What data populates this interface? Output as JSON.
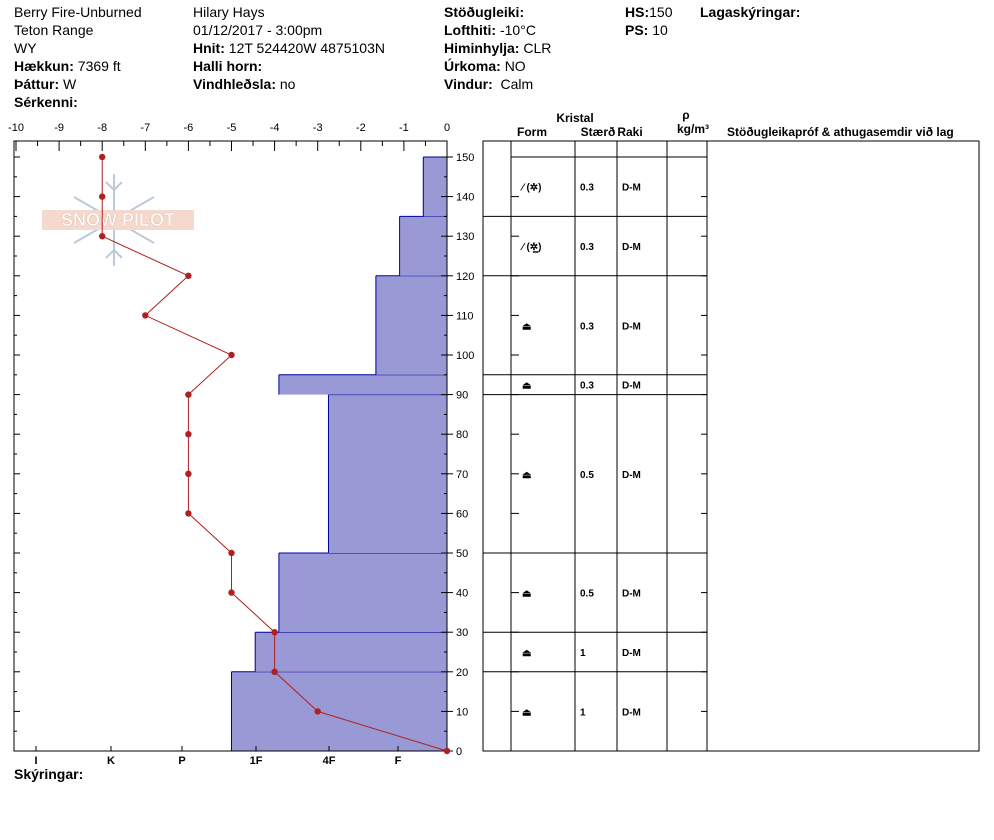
{
  "header": {
    "col1": {
      "location": "Berry Fire-Unburned",
      "range": "Teton Range",
      "state": "WY",
      "elevation_label": "Hækkun:",
      "elevation_value": "7369 ft",
      "aspect_label": "Þáttur:",
      "aspect_value": "W",
      "features_label": "Sérkenni:"
    },
    "col2": {
      "observer": "Hilary Hays",
      "datetime": "01/12/2017 - 3:00pm",
      "coords_label": "Hnit:",
      "coords_value": "12T 524420W 4875103N",
      "slope_label": "Halli horn:",
      "wind_loading_label": "Vindhleðsla:",
      "wind_loading_value": "no"
    },
    "col3": {
      "stability_label": "Stöðugleiki:",
      "airtemp_label": "Lofthiti:",
      "airtemp_value": "-10°C",
      "sky_label": "Himinhylja:",
      "sky_value": "CLR",
      "precip_label": "Úrkoma:",
      "precip_value": "NO",
      "wind_label": "Vindur:",
      "wind_value": "Calm"
    },
    "col4": {
      "hs_label": "HS:",
      "hs_value": "150",
      "ps_label": "PS:",
      "ps_value": "10"
    },
    "layer_notes_label": "Lagaskýringar:"
  },
  "footer": {
    "notes_label": "Skýringar:"
  },
  "logo_text": "SNOW PILOT",
  "table": {
    "kristal_label": "Kristal",
    "form_label": "Form",
    "size_label": "Stærð",
    "wetness_label": "Raki",
    "density_symbol": "ρ",
    "density_unit": "kg/m³",
    "comments_label": "Stöðugleikapróf & athugasemdir við lag"
  },
  "colors": {
    "hardness_fill": "#9999d6",
    "hardness_stroke": "#0000a0",
    "temp_line": "#b02020"
  },
  "chart_data": {
    "type": "snow-profile",
    "height_axis": {
      "min": 0,
      "max": 150,
      "ticks": [
        0,
        10,
        20,
        30,
        40,
        50,
        60,
        70,
        80,
        90,
        100,
        110,
        120,
        130,
        140,
        150
      ]
    },
    "temp_axis": {
      "min": -10,
      "max": 0,
      "tick_labels": [
        "-10",
        "-9",
        "-8",
        "-7",
        "-6",
        "-5",
        "-4",
        "-3",
        "-2",
        "-1",
        "0"
      ]
    },
    "hardness_axis_labels": [
      "I",
      "K",
      "P",
      "1F",
      "4F",
      "F"
    ],
    "hardness_layers": [
      {
        "bottom": 0,
        "top": 20,
        "temp_units": -5.0
      },
      {
        "bottom": 20,
        "top": 30,
        "temp_units": -4.45
      },
      {
        "bottom": 30,
        "top": 50,
        "temp_units": -3.9
      },
      {
        "bottom": 50,
        "top": 90,
        "temp_units": -2.75
      },
      {
        "bottom": 90,
        "top": 95,
        "temp_units": -3.9
      },
      {
        "bottom": 95,
        "top": 120,
        "temp_units": -1.65
      },
      {
        "bottom": 120,
        "top": 135,
        "temp_units": -1.1
      },
      {
        "bottom": 135,
        "top": 150,
        "temp_units": -0.55
      }
    ],
    "temperature_profile": [
      {
        "height": 0,
        "temp": 0
      },
      {
        "height": 10,
        "temp": -3
      },
      {
        "height": 20,
        "temp": -4
      },
      {
        "height": 30,
        "temp": -4
      },
      {
        "height": 40,
        "temp": -5
      },
      {
        "height": 50,
        "temp": -5
      },
      {
        "height": 60,
        "temp": -6
      },
      {
        "height": 70,
        "temp": -6
      },
      {
        "height": 80,
        "temp": -6
      },
      {
        "height": 90,
        "temp": -6
      },
      {
        "height": 100,
        "temp": -5
      },
      {
        "height": 110,
        "temp": -7
      },
      {
        "height": 120,
        "temp": -6
      },
      {
        "height": 130,
        "temp": -8
      },
      {
        "height": 140,
        "temp": -8
      },
      {
        "height": 150,
        "temp": -8
      }
    ],
    "layers": [
      {
        "top": 150,
        "bottom": 135,
        "form": "⁄ (✲)",
        "size": "0.3",
        "wetness": "D-M"
      },
      {
        "top": 135,
        "bottom": 120,
        "form": "⁄ (✲̲)",
        "size": "0.3",
        "wetness": "D-M"
      },
      {
        "top": 120,
        "bottom": 95,
        "form": "⏏",
        "size": "0.3",
        "wetness": "D-M"
      },
      {
        "top": 95,
        "bottom": 90,
        "form": "⏏",
        "size": "0.3",
        "wetness": "D-M"
      },
      {
        "top": 90,
        "bottom": 50,
        "form": "⏏",
        "size": "0.5",
        "wetness": "D-M"
      },
      {
        "top": 50,
        "bottom": 30,
        "form": "⏏",
        "size": "0.5",
        "wetness": "D-M"
      },
      {
        "top": 30,
        "bottom": 20,
        "form": "⏏",
        "size": "1",
        "wetness": "D-M"
      },
      {
        "top": 20,
        "bottom": 0,
        "form": "⏏",
        "size": "1",
        "wetness": "D-M"
      }
    ]
  }
}
